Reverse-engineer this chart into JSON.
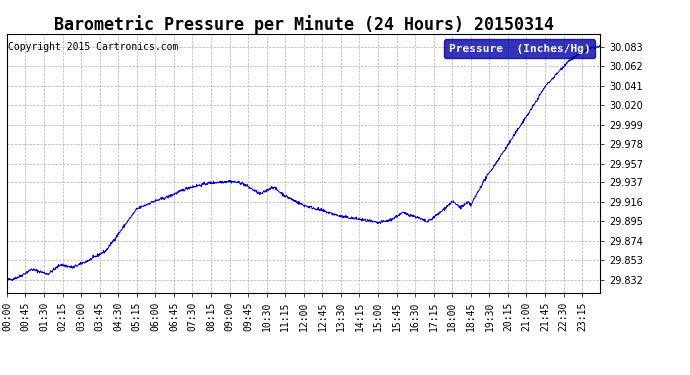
{
  "title": "Barometric Pressure per Minute (24 Hours) 20150314",
  "copyright": "Copyright 2015 Cartronics.com",
  "legend_label": "Pressure  (Inches/Hg)",
  "line_color": "#0000cc",
  "background_color": "#ffffff",
  "plot_bg_color": "#ffffff",
  "grid_color": "#b0b0b0",
  "yticks": [
    29.832,
    29.853,
    29.874,
    29.895,
    29.916,
    29.937,
    29.957,
    29.978,
    29.999,
    30.02,
    30.041,
    30.062,
    30.083
  ],
  "ylim": [
    29.818,
    30.097
  ],
  "xtick_labels": [
    "00:00",
    "00:45",
    "01:30",
    "02:15",
    "03:00",
    "03:45",
    "04:30",
    "05:15",
    "06:00",
    "06:45",
    "07:30",
    "08:15",
    "09:00",
    "09:45",
    "10:30",
    "11:15",
    "12:00",
    "12:45",
    "13:30",
    "14:15",
    "15:00",
    "15:45",
    "16:30",
    "17:15",
    "18:00",
    "18:45",
    "19:30",
    "20:15",
    "21:00",
    "21:45",
    "22:30",
    "23:15"
  ],
  "title_fontsize": 12,
  "tick_fontsize": 7,
  "copyright_fontsize": 7,
  "legend_fontsize": 8
}
